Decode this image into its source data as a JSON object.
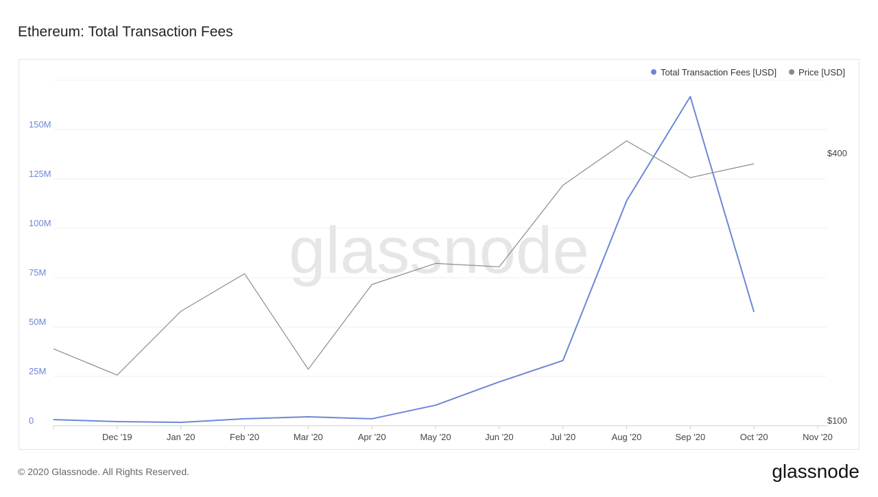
{
  "header": {
    "title": "Ethereum: Total Transaction Fees"
  },
  "chart_data": {
    "type": "line",
    "categories": [
      null,
      "Dec '19",
      "Jan '20",
      "Feb '20",
      "Mar '20",
      "Apr '20",
      "May '20",
      "Jun '20",
      "Jul '20",
      "Aug '20",
      "Sep '20",
      "Oct '20",
      "Nov '20"
    ],
    "series": [
      {
        "name": "Total Transaction Fees [USD]",
        "color": "#6a86d6",
        "values": [
          3100000,
          2100000,
          1700000,
          3500000,
          4500000,
          3500000,
          10400000,
          22200000,
          33000000,
          113900000,
          166700000,
          57600000,
          null
        ]
      },
      {
        "name": "Price [USD]",
        "color": "#8a8a8a",
        "axis": "y2",
        "values": [
          149,
          130,
          181,
          220,
          134,
          208,
          232,
          228,
          348,
          438,
          362,
          389,
          null
        ]
      }
    ],
    "ylim": [
      0,
      175000000
    ],
    "yticks": [
      {
        "value": 0,
        "label": "0"
      },
      {
        "value": 25000000,
        "label": "25M"
      },
      {
        "value": 50000000,
        "label": "50M"
      },
      {
        "value": 75000000,
        "label": "75M"
      },
      {
        "value": 100000000,
        "label": "100M"
      },
      {
        "value": 125000000,
        "label": "125M"
      },
      {
        "value": 150000000,
        "label": "150M"
      }
    ],
    "y2lim": [
      100,
      600
    ],
    "y2ticks": [
      {
        "value": 100,
        "label": "$100"
      },
      {
        "value": 400,
        "label": "$400"
      }
    ],
    "y2log": true,
    "grid": true,
    "legend": "top-right",
    "watermark": "glassnode"
  },
  "footer": {
    "copyright": "© 2020 Glassnode. All Rights Reserved.",
    "logo": "glassnode"
  }
}
